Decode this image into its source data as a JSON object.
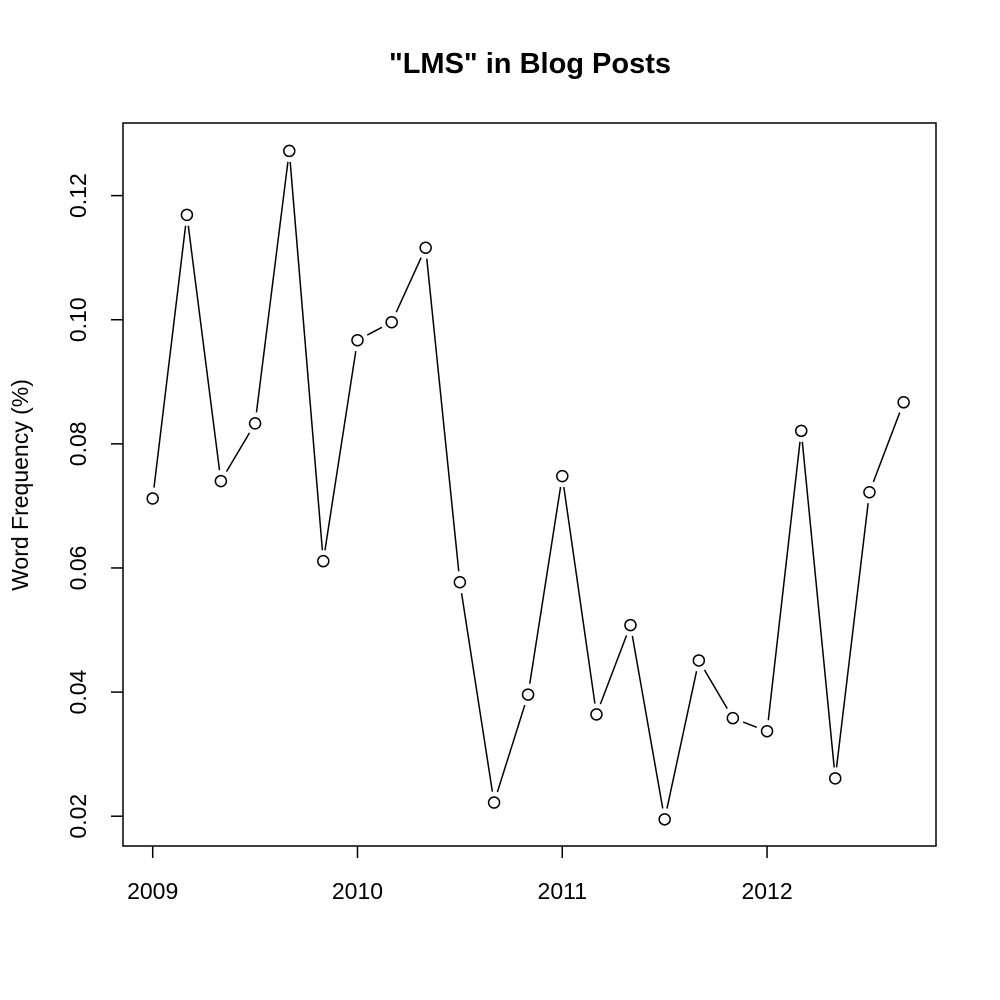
{
  "chart_data": {
    "type": "line",
    "title": "\"LMS\" in Blog Posts",
    "xlabel": "",
    "ylabel": "Word Frequency (%)",
    "xlim": [
      2008.855,
      2012.825
    ],
    "ylim": [
      0.0152,
      0.1317
    ],
    "x_ticks": [
      {
        "value": 2009,
        "label": "2009"
      },
      {
        "value": 2010,
        "label": "2010"
      },
      {
        "value": 2011,
        "label": "2011"
      },
      {
        "value": 2012,
        "label": "2012"
      }
    ],
    "y_ticks": [
      {
        "value": 0.02,
        "label": "0.02"
      },
      {
        "value": 0.04,
        "label": "0.04"
      },
      {
        "value": 0.06,
        "label": "0.06"
      },
      {
        "value": 0.08,
        "label": "0.08"
      },
      {
        "value": 0.1,
        "label": "0.10"
      },
      {
        "value": 0.12,
        "label": "0.12"
      }
    ],
    "grid": false,
    "markers": "open-circle",
    "series": [
      {
        "x": [
          2009.0,
          2009.167,
          2009.333,
          2009.5,
          2009.667,
          2009.833,
          2010.0,
          2010.167,
          2010.333,
          2010.5,
          2010.667,
          2010.833,
          2011.0,
          2011.167,
          2011.333,
          2011.5,
          2011.667,
          2011.833,
          2012.0,
          2012.167,
          2012.333,
          2012.5,
          2012.667
        ],
        "y": [
          0.0712,
          0.1169,
          0.074,
          0.0833,
          0.1272,
          0.0611,
          0.0967,
          0.0996,
          0.1116,
          0.0577,
          0.0222,
          0.0396,
          0.0748,
          0.0364,
          0.0508,
          0.0195,
          0.0451,
          0.0358,
          0.0337,
          0.0821,
          0.0261,
          0.0722,
          0.0867
        ]
      }
    ]
  }
}
